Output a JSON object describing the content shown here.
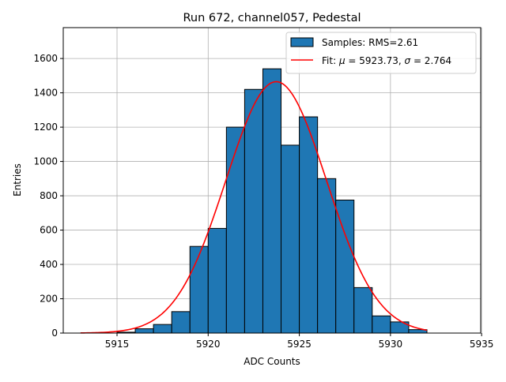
{
  "chart_data": {
    "type": "bar",
    "title": "Run 672, channel057, Pedestal",
    "xlabel": "ADC Counts",
    "ylabel": "Entries",
    "xlim": [
      5912.05,
      5934.95
    ],
    "ylim": [
      0,
      1780
    ],
    "xticks": [
      5915,
      5920,
      5925,
      5930,
      5935
    ],
    "yticks": [
      0,
      200,
      400,
      600,
      800,
      1000,
      1200,
      1400,
      1600
    ],
    "grid": true,
    "legend_position": "top-right",
    "histogram": {
      "name": "Samples: RMS=2.61",
      "color": "#1f77b4",
      "edge_color": "#000000",
      "bins": [
        {
          "x0": 5915,
          "x1": 5916,
          "count": 5
        },
        {
          "x0": 5916,
          "x1": 5917,
          "count": 25
        },
        {
          "x0": 5917,
          "x1": 5918,
          "count": 50
        },
        {
          "x0": 5918,
          "x1": 5919,
          "count": 125
        },
        {
          "x0": 5919,
          "x1": 5920,
          "count": 505
        },
        {
          "x0": 5920,
          "x1": 5921,
          "count": 610
        },
        {
          "x0": 5921,
          "x1": 5922,
          "count": 1200
        },
        {
          "x0": 5922,
          "x1": 5923,
          "count": 1420
        },
        {
          "x0": 5923,
          "x1": 5924,
          "count": 1540
        },
        {
          "x0": 5924,
          "x1": 5925,
          "count": 1095
        },
        {
          "x0": 5925,
          "x1": 5926,
          "count": 1260
        },
        {
          "x0": 5926,
          "x1": 5927,
          "count": 900
        },
        {
          "x0": 5927,
          "x1": 5928,
          "count": 775
        },
        {
          "x0": 5928,
          "x1": 5929,
          "count": 265
        },
        {
          "x0": 5929,
          "x1": 5930,
          "count": 100
        },
        {
          "x0": 5930,
          "x1": 5931,
          "count": 65
        },
        {
          "x0": 5931,
          "x1": 5932,
          "count": 20
        }
      ]
    },
    "fit": {
      "type": "gaussian",
      "legend_prefix": "Fit: ",
      "mu_symbol": "μ",
      "sigma_symbol": "σ",
      "mu_text": " = 5923.73, ",
      "sigma_text": " = 2.764",
      "mu": 5923.73,
      "sigma": 2.764,
      "amplitude": 1465,
      "x_range": [
        5913,
        5932
      ],
      "color": "#ff0000"
    }
  }
}
